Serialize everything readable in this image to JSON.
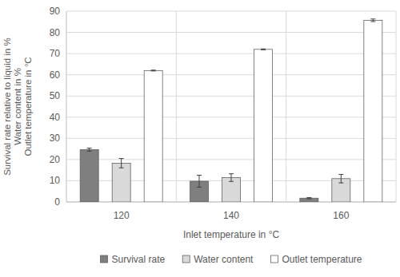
{
  "chart_data": {
    "type": "bar",
    "ylabel": [
      "Survival rate relative to liquid in %",
      "Water content in %",
      "Outlet temperature in °C"
    ],
    "xlabel": "Inlet temperature in °C",
    "categories": [
      "120",
      "140",
      "160"
    ],
    "series": [
      {
        "name": "Survival rate",
        "color": "#7f7f7f",
        "values": [
          24.7,
          9.8,
          1.8
        ],
        "errors": [
          0.7,
          2.8,
          0.3
        ]
      },
      {
        "name": "Water content",
        "color": "#d9d9d9",
        "values": [
          18.3,
          11.5,
          11.0
        ],
        "errors": [
          2.2,
          1.8,
          2.0
        ]
      },
      {
        "name": "Outlet temperature",
        "color": "#ffffff",
        "values": [
          62.0,
          72.0,
          85.7
        ],
        "errors": [
          0.2,
          0.2,
          0.6
        ]
      }
    ],
    "ylim": [
      0,
      90
    ],
    "yticks": [
      0,
      10,
      20,
      30,
      40,
      50,
      60,
      70,
      80,
      90
    ],
    "grid": true,
    "legend": "bottom"
  }
}
